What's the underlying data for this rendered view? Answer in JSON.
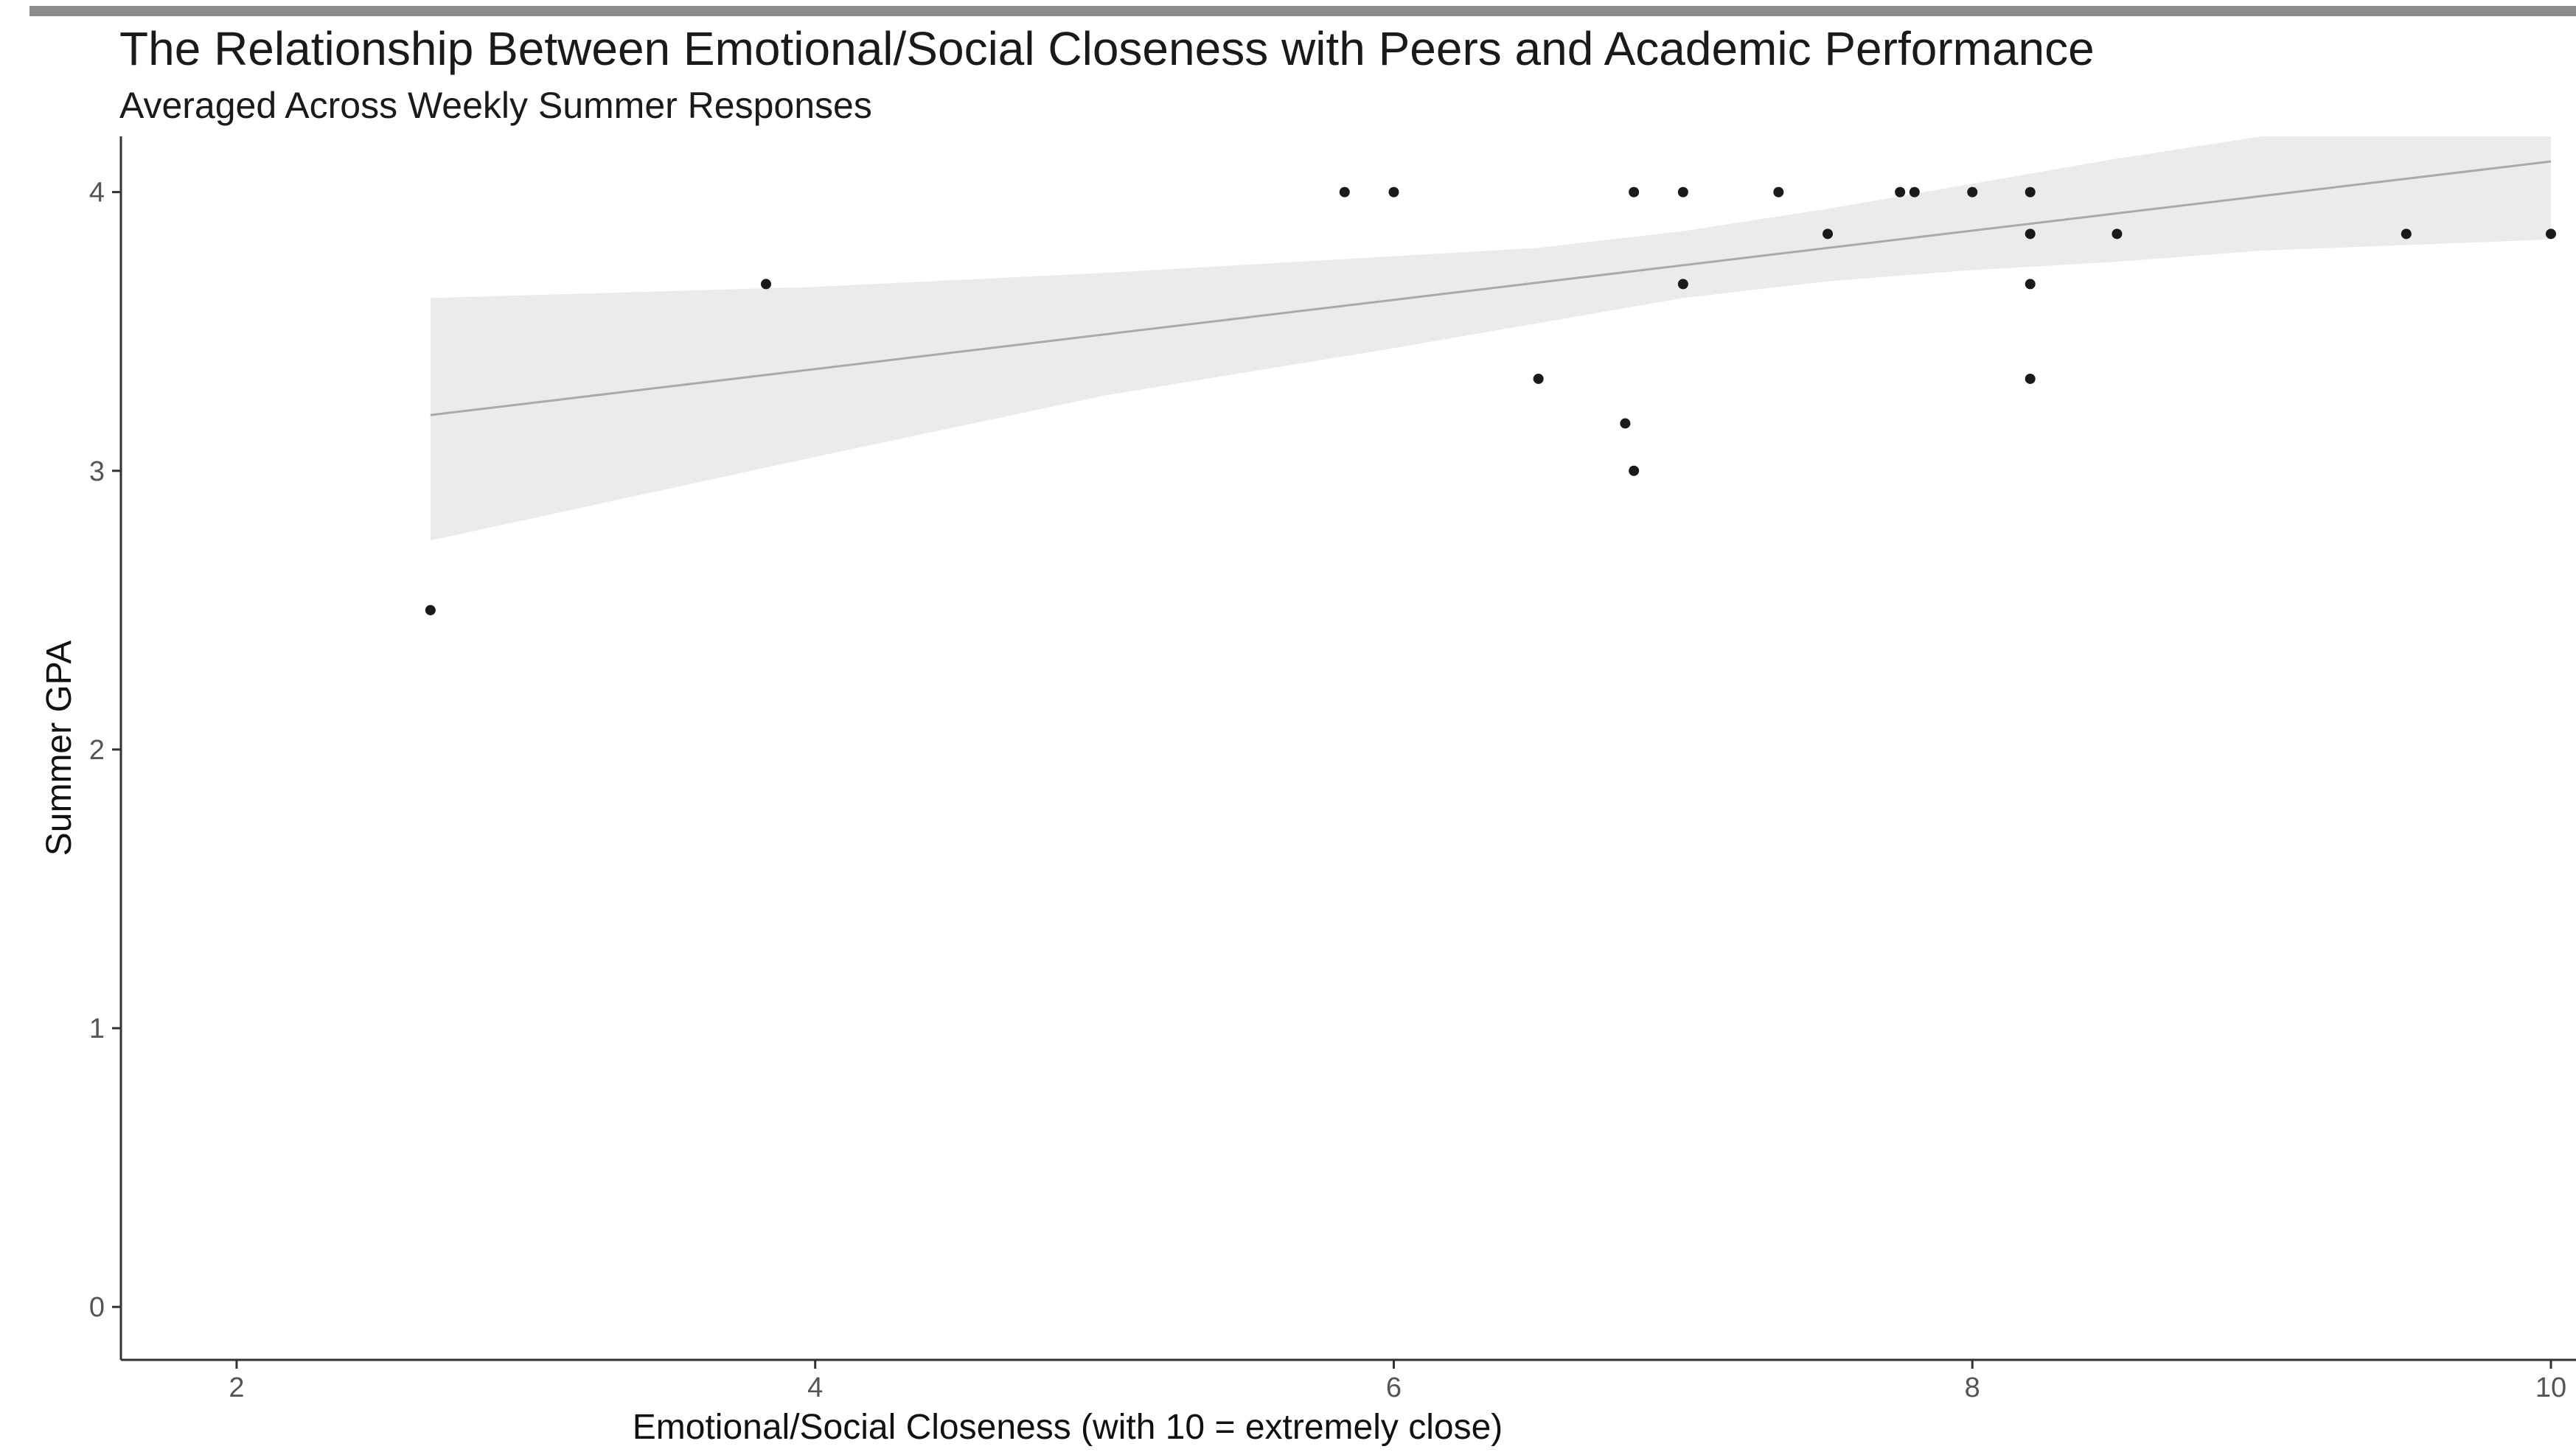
{
  "chart_data": {
    "type": "scatter",
    "title": "The Relationship Between Emotional/Social Closeness with Peers and Academic Performance",
    "subtitle": "Averaged Across Weekly Summer Responses",
    "xlabel": "Emotional/Social Closeness (with 10 = extremely close)",
    "ylabel": "Summer GPA",
    "xlim": [
      1.6,
      10.0
    ],
    "ylim": [
      -0.19,
      4.2
    ],
    "x_ticks": [
      2,
      4,
      6,
      8,
      10
    ],
    "y_ticks": [
      0,
      1,
      2,
      3,
      4
    ],
    "grid": false,
    "points": [
      {
        "x": 2.67,
        "y": 2.5
      },
      {
        "x": 3.83,
        "y": 3.67
      },
      {
        "x": 5.83,
        "y": 4.0
      },
      {
        "x": 6.0,
        "y": 4.0
      },
      {
        "x": 6.5,
        "y": 3.33
      },
      {
        "x": 6.8,
        "y": 3.17
      },
      {
        "x": 6.83,
        "y": 3.0
      },
      {
        "x": 6.83,
        "y": 4.0
      },
      {
        "x": 7.0,
        "y": 4.0
      },
      {
        "x": 7.0,
        "y": 3.67
      },
      {
        "x": 7.33,
        "y": 4.0
      },
      {
        "x": 7.5,
        "y": 3.85
      },
      {
        "x": 7.75,
        "y": 4.0
      },
      {
        "x": 7.8,
        "y": 4.0
      },
      {
        "x": 8.0,
        "y": 4.0
      },
      {
        "x": 8.2,
        "y": 4.0
      },
      {
        "x": 8.2,
        "y": 3.85
      },
      {
        "x": 8.2,
        "y": 3.67
      },
      {
        "x": 8.2,
        "y": 3.33
      },
      {
        "x": 8.5,
        "y": 3.85
      },
      {
        "x": 9.5,
        "y": 3.85
      },
      {
        "x": 10.0,
        "y": 3.85
      }
    ],
    "trend_line": {
      "x": [
        2.67,
        10.0
      ],
      "y": [
        3.2,
        4.11
      ]
    },
    "confidence_band": {
      "x": [
        2.67,
        4.0,
        5.0,
        6.0,
        6.5,
        7.0,
        7.5,
        8.0,
        8.5,
        9.0,
        9.5,
        10.0
      ],
      "upper": [
        3.62,
        3.66,
        3.71,
        3.77,
        3.8,
        3.86,
        3.94,
        4.03,
        4.12,
        4.2,
        4.2,
        4.2
      ],
      "lower": [
        2.75,
        3.05,
        3.27,
        3.44,
        3.53,
        3.62,
        3.68,
        3.72,
        3.75,
        3.79,
        3.81,
        3.83
      ]
    },
    "colors": {
      "points": "#1a1a1a",
      "trend_line": "#aaaaaa",
      "band": "#ebebeb",
      "axis": "#333333"
    }
  }
}
